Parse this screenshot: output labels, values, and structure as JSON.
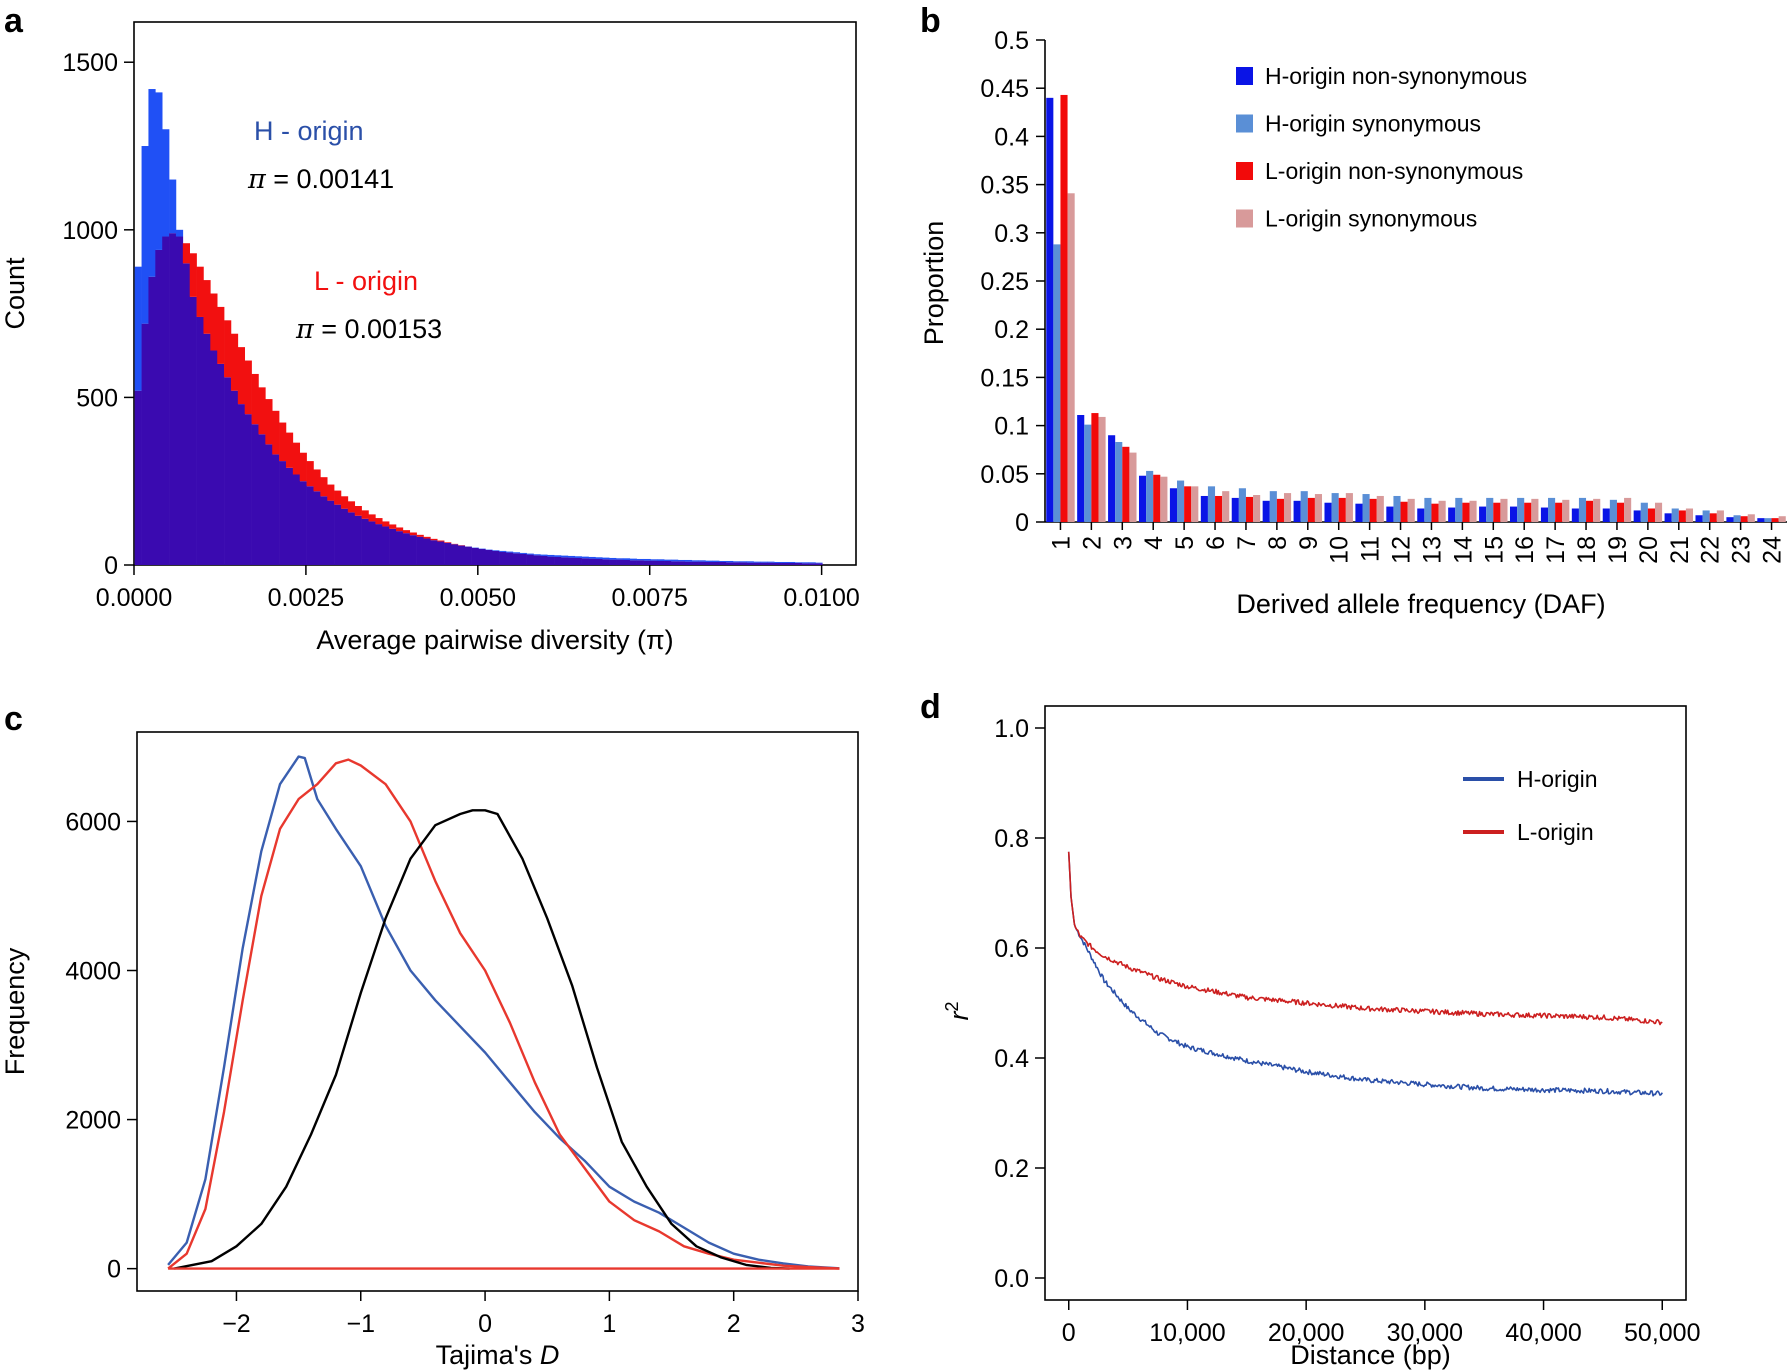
{
  "colors": {
    "h_nonsyn": "#0a14e6",
    "h_syn": "#5a8fd6",
    "l_nonsyn": "#f20a0a",
    "l_syn": "#d89a9a",
    "h_hist": "#2050f5",
    "l_hist": "#f21010",
    "overlap": "#3a0ab0",
    "h_line": "#2a4fa8",
    "l_line": "#cc1f1f",
    "c_blue": "#3a5fb0",
    "c_red": "#e8382e",
    "c_black": "#000000"
  },
  "chart_data": [
    {
      "panel": "a",
      "type": "bar",
      "xlabel": "Average pairwise diversity (π)",
      "ylabel": "Count",
      "xlim": [
        0,
        0.0105
      ],
      "ylim": [
        0,
        1620
      ],
      "xticks": [
        0,
        0.0025,
        0.005,
        0.0075,
        0.01
      ],
      "xtick_labels": [
        "0.0000",
        "0.0025",
        "0.0050",
        "0.0075",
        "0.0100"
      ],
      "yticks": [
        0,
        500,
        1000,
        1500
      ],
      "ytick_labels": [
        "0",
        "500",
        "1000",
        "1500"
      ],
      "annotations": [
        {
          "text": "H - origin",
          "color": "h_line"
        },
        {
          "prefix": "π",
          "text": " = 0.00141",
          "color": "c_black"
        },
        {
          "text": "L - origin",
          "color": "l_hist"
        },
        {
          "prefix": "π",
          "text": " = 0.00153",
          "color": "c_black"
        }
      ],
      "bin_width": 0.0001,
      "series": [
        {
          "name": "H - origin",
          "values": [
            890,
            1250,
            1420,
            1410,
            1300,
            1150,
            1000,
            900,
            800,
            740,
            690,
            640,
            600,
            560,
            520,
            480,
            450,
            420,
            390,
            360,
            330,
            310,
            290,
            270,
            250,
            235,
            220,
            205,
            192,
            180,
            168,
            157,
            147,
            138,
            130,
            122,
            115,
            108,
            101,
            95,
            89,
            84,
            79,
            74,
            70,
            66,
            62,
            58,
            55,
            52,
            49,
            46,
            44,
            42,
            40,
            38,
            36,
            34,
            32,
            31,
            30,
            29,
            28,
            27,
            26,
            25,
            24,
            23,
            22,
            21,
            20,
            20,
            19,
            18,
            18,
            17,
            17,
            16,
            16,
            15,
            15,
            14,
            14,
            13,
            13,
            12,
            12,
            11,
            11,
            11,
            10,
            10,
            10,
            9,
            9,
            9,
            8,
            8,
            8,
            7
          ]
        },
        {
          "name": "L - origin",
          "values": [
            520,
            720,
            860,
            940,
            980,
            990,
            980,
            960,
            930,
            890,
            850,
            810,
            770,
            730,
            690,
            650,
            610,
            570,
            530,
            495,
            460,
            425,
            395,
            365,
            335,
            310,
            285,
            262,
            240,
            222,
            205,
            190,
            176,
            163,
            151,
            140,
            130,
            121,
            112,
            104,
            97,
            90,
            84,
            78,
            73,
            68,
            63,
            59,
            55,
            51,
            48,
            45,
            42,
            39,
            37,
            35,
            33,
            31,
            29,
            27,
            25,
            24,
            23,
            22,
            21,
            20,
            19,
            18,
            17,
            16,
            16,
            15,
            14,
            14,
            13,
            13,
            12,
            12,
            11,
            11,
            10,
            10,
            10,
            9,
            9,
            9,
            8,
            8,
            8,
            7,
            7,
            7,
            7,
            6,
            6,
            6,
            6,
            5,
            5,
            5
          ]
        }
      ]
    },
    {
      "panel": "b",
      "type": "bar",
      "xlabel": "Derived allele frequency (DAF)",
      "ylabel": "Proportion",
      "ylim": [
        0,
        0.5
      ],
      "yticks": [
        0,
        0.05,
        0.1,
        0.15,
        0.2,
        0.25,
        0.3,
        0.35,
        0.4,
        0.45,
        0.5
      ],
      "ytick_labels": [
        "0",
        "0.05",
        "0.1",
        "0.15",
        "0.2",
        "0.25",
        "0.3",
        "0.35",
        "0.4",
        "0.45",
        "0.5"
      ],
      "categories": [
        "1",
        "2",
        "3",
        "4",
        "5",
        "6",
        "7",
        "8",
        "9",
        "10",
        "11",
        "12",
        "13",
        "14",
        "15",
        "16",
        "17",
        "18",
        "19",
        "20",
        "21",
        "22",
        "23",
        "24"
      ],
      "legend": "top-right",
      "series": [
        {
          "name": "H-origin non-synonymous",
          "color": "h_nonsyn",
          "values": [
            0.44,
            0.111,
            0.09,
            0.048,
            0.035,
            0.027,
            0.025,
            0.022,
            0.022,
            0.02,
            0.019,
            0.016,
            0.014,
            0.015,
            0.016,
            0.016,
            0.015,
            0.014,
            0.014,
            0.012,
            0.009,
            0.007,
            0.005,
            0.004
          ]
        },
        {
          "name": "H-origin synonymous",
          "color": "h_syn",
          "values": [
            0.288,
            0.101,
            0.083,
            0.053,
            0.043,
            0.037,
            0.035,
            0.032,
            0.032,
            0.03,
            0.029,
            0.027,
            0.025,
            0.025,
            0.025,
            0.025,
            0.025,
            0.025,
            0.023,
            0.02,
            0.014,
            0.012,
            0.007,
            0.004
          ]
        },
        {
          "name": "L-origin non-synonymous",
          "color": "l_nonsyn",
          "values": [
            0.443,
            0.113,
            0.078,
            0.049,
            0.037,
            0.027,
            0.026,
            0.024,
            0.025,
            0.025,
            0.024,
            0.021,
            0.019,
            0.02,
            0.02,
            0.02,
            0.02,
            0.022,
            0.02,
            0.014,
            0.012,
            0.009,
            0.006,
            0.004
          ]
        },
        {
          "name": "L-origin synonymous",
          "color": "l_syn",
          "values": [
            0.341,
            0.109,
            0.072,
            0.047,
            0.037,
            0.032,
            0.028,
            0.03,
            0.029,
            0.03,
            0.027,
            0.024,
            0.022,
            0.022,
            0.024,
            0.024,
            0.023,
            0.024,
            0.025,
            0.02,
            0.014,
            0.012,
            0.008,
            0.006
          ]
        }
      ]
    },
    {
      "panel": "c",
      "type": "line",
      "xlabel_prefix": "Tajima's ",
      "xlabel_italic": "D",
      "ylabel": "Frequency",
      "xlim": [
        -2.8,
        3.0
      ],
      "ylim": [
        -300,
        7200
      ],
      "xticks": [
        -2,
        -1,
        0,
        1,
        2,
        3
      ],
      "xtick_labels": [
        "−2",
        "−1",
        "0",
        "1",
        "2",
        "3"
      ],
      "yticks": [
        0,
        2000,
        4000,
        6000
      ],
      "ytick_labels": [
        "0",
        "2000",
        "4000",
        "6000"
      ],
      "series": [
        {
          "color": "c_blue",
          "x": [
            -2.55,
            -2.4,
            -2.25,
            -2.1,
            -1.95,
            -1.8,
            -1.65,
            -1.5,
            -1.45,
            -1.35,
            -1.2,
            -1.0,
            -0.8,
            -0.6,
            -0.4,
            -0.2,
            0.0,
            0.2,
            0.4,
            0.6,
            0.8,
            1.0,
            1.2,
            1.4,
            1.6,
            1.8,
            2.0,
            2.2,
            2.4,
            2.6,
            2.85
          ],
          "y": [
            50,
            350,
            1200,
            2700,
            4300,
            5600,
            6500,
            6870,
            6850,
            6300,
            5900,
            5400,
            4600,
            4000,
            3600,
            3250,
            2900,
            2500,
            2100,
            1750,
            1450,
            1100,
            900,
            750,
            550,
            350,
            200,
            120,
            70,
            30,
            5
          ]
        },
        {
          "color": "c_red",
          "x": [
            -2.55,
            -2.4,
            -2.25,
            -2.1,
            -1.95,
            -1.8,
            -1.65,
            -1.5,
            -1.35,
            -1.2,
            -1.1,
            -1.0,
            -0.8,
            -0.6,
            -0.4,
            -0.2,
            0.0,
            0.2,
            0.4,
            0.6,
            0.8,
            1.0,
            1.2,
            1.4,
            1.6,
            1.8,
            2.0,
            2.2,
            2.4,
            2.6,
            2.85
          ],
          "y": [
            0,
            200,
            800,
            2100,
            3600,
            5000,
            5900,
            6300,
            6500,
            6780,
            6830,
            6750,
            6500,
            6000,
            5200,
            4500,
            4000,
            3300,
            2500,
            1800,
            1350,
            900,
            650,
            500,
            300,
            200,
            120,
            80,
            40,
            20,
            0
          ]
        },
        {
          "color": "c_black",
          "x": [
            -2.5,
            -2.2,
            -2.0,
            -1.8,
            -1.6,
            -1.4,
            -1.2,
            -1.0,
            -0.8,
            -0.6,
            -0.4,
            -0.2,
            -0.1,
            0.0,
            0.1,
            0.3,
            0.5,
            0.7,
            0.9,
            1.1,
            1.3,
            1.5,
            1.7,
            1.9,
            2.1,
            2.3,
            2.45
          ],
          "y": [
            0,
            100,
            300,
            600,
            1100,
            1800,
            2600,
            3700,
            4700,
            5500,
            5950,
            6100,
            6150,
            6150,
            6100,
            5500,
            4700,
            3800,
            2700,
            1700,
            1100,
            600,
            300,
            150,
            50,
            10,
            0
          ]
        },
        {
          "color": "c_red",
          "x": [
            -2.55,
            2.85
          ],
          "y": [
            0,
            0
          ]
        }
      ]
    },
    {
      "panel": "d",
      "type": "line",
      "xlabel": "Distance (bp)",
      "ylabel": "r",
      "ylabel_superscript": "2",
      "xlim": [
        -2000,
        52000
      ],
      "ylim": [
        -0.04,
        1.04
      ],
      "xticks": [
        0,
        10000,
        20000,
        30000,
        40000,
        50000
      ],
      "xtick_labels": [
        "0",
        "10,000",
        "20,000",
        "30,000",
        "40,000",
        "50,000"
      ],
      "yticks": [
        0,
        0.2,
        0.4,
        0.6,
        0.8,
        1.0
      ],
      "ytick_labels": [
        "0.0",
        "0.2",
        "0.4",
        "0.6",
        "0.8",
        "1.0"
      ],
      "legend": "top-right",
      "series": [
        {
          "name": "H-origin",
          "color": "h_line",
          "x": [
            0,
            200,
            500,
            1000,
            2000,
            3000,
            5000,
            7500,
            10000,
            15000,
            20000,
            25000,
            30000,
            35000,
            40000,
            45000,
            50000
          ],
          "y": [
            0.775,
            0.69,
            0.64,
            0.62,
            0.58,
            0.54,
            0.49,
            0.445,
            0.42,
            0.395,
            0.375,
            0.36,
            0.352,
            0.345,
            0.342,
            0.34,
            0.335
          ]
        },
        {
          "name": "L-origin",
          "color": "l_line",
          "x": [
            0,
            200,
            500,
            1000,
            2000,
            3000,
            5000,
            7500,
            10000,
            15000,
            20000,
            25000,
            30000,
            35000,
            40000,
            45000,
            50000
          ],
          "y": [
            0.775,
            0.69,
            0.64,
            0.62,
            0.6,
            0.585,
            0.565,
            0.545,
            0.53,
            0.51,
            0.5,
            0.49,
            0.485,
            0.48,
            0.477,
            0.474,
            0.465
          ]
        }
      ]
    }
  ]
}
